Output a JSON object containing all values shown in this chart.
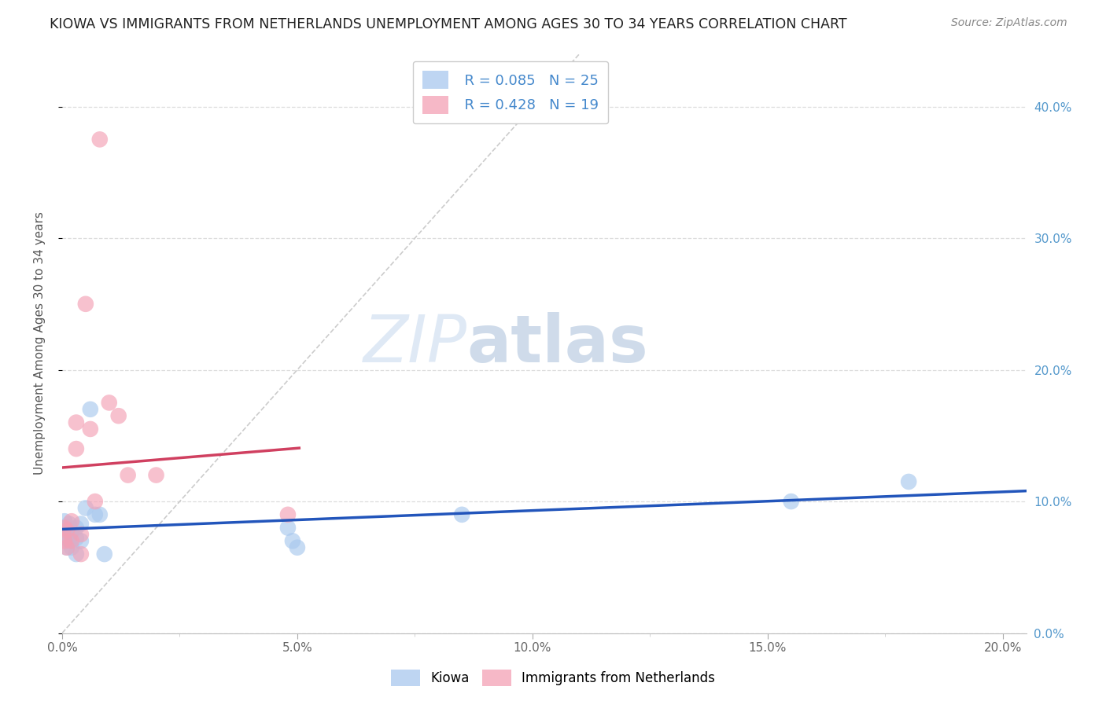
{
  "title": "KIOWA VS IMMIGRANTS FROM NETHERLANDS UNEMPLOYMENT AMONG AGES 30 TO 34 YEARS CORRELATION CHART",
  "source": "Source: ZipAtlas.com",
  "ylabel": "Unemployment Among Ages 30 to 34 years",
  "xlim": [
    0.0,
    0.205
  ],
  "ylim": [
    0.0,
    0.44
  ],
  "xticks": [
    0.0,
    0.05,
    0.1,
    0.15,
    0.2
  ],
  "xtick_labels": [
    "0.0%",
    "5.0%",
    "10.0%",
    "15.0%",
    "20.0%"
  ],
  "xtick_minor": [
    0.025,
    0.075,
    0.125,
    0.175
  ],
  "ytick_positions": [
    0.0,
    0.1,
    0.2,
    0.3,
    0.4
  ],
  "ytick_labels_right": [
    "0.0%",
    "10.0%",
    "20.0%",
    "30.0%",
    "40.0%"
  ],
  "series_blue": {
    "name": "Kiowa",
    "color": "#A8C8EE",
    "R": 0.085,
    "N": 25,
    "x": [
      0.0005,
      0.0005,
      0.001,
      0.001,
      0.001,
      0.0015,
      0.0015,
      0.002,
      0.002,
      0.003,
      0.003,
      0.003,
      0.004,
      0.004,
      0.005,
      0.006,
      0.007,
      0.008,
      0.009,
      0.048,
      0.049,
      0.05,
      0.085,
      0.155,
      0.18
    ],
    "y": [
      0.085,
      0.075,
      0.08,
      0.072,
      0.065,
      0.083,
      0.07,
      0.077,
      0.065,
      0.08,
      0.072,
      0.06,
      0.083,
      0.07,
      0.095,
      0.17,
      0.09,
      0.09,
      0.06,
      0.08,
      0.07,
      0.065,
      0.09,
      0.1,
      0.115
    ]
  },
  "series_pink": {
    "name": "Immigrants from Netherlands",
    "color": "#F4A0B5",
    "R": 0.428,
    "N": 19,
    "x": [
      0.0005,
      0.0005,
      0.001,
      0.001,
      0.002,
      0.002,
      0.003,
      0.003,
      0.004,
      0.004,
      0.005,
      0.006,
      0.007,
      0.008,
      0.01,
      0.012,
      0.014,
      0.02,
      0.048
    ],
    "y": [
      0.08,
      0.07,
      0.078,
      0.065,
      0.085,
      0.07,
      0.16,
      0.14,
      0.075,
      0.06,
      0.25,
      0.155,
      0.1,
      0.375,
      0.175,
      0.165,
      0.12,
      0.12,
      0.09
    ]
  },
  "watermark_zip": "ZIP",
  "watermark_atlas": "atlas",
  "trend_blue_color": "#2255BB",
  "trend_pink_color": "#D04060",
  "trend_diag_color": "#CCCCCC",
  "background_color": "#FFFFFF",
  "grid_color": "#DDDDDD",
  "legend_text_color": "#4488CC",
  "legend_label_color": "#333333"
}
